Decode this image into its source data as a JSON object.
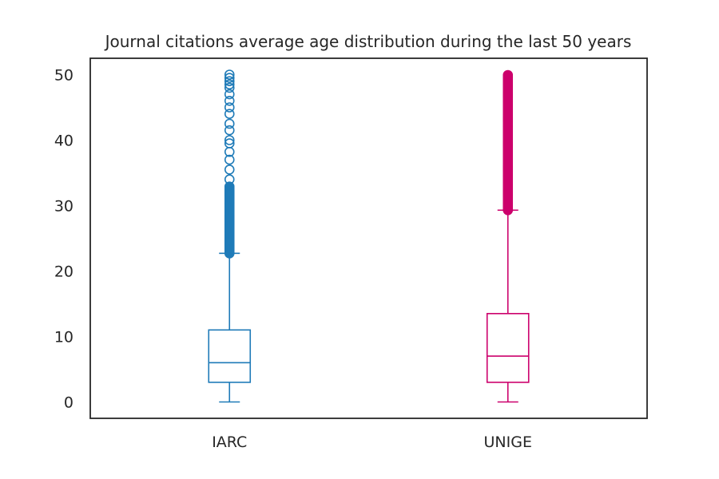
{
  "chart_data": {
    "type": "box",
    "title": "Journal citations average age distribution during the last 50 years",
    "xlabel": "",
    "ylabel": "",
    "categories": [
      "IARC",
      "UNIGE"
    ],
    "ylim": [
      -2.5,
      52.5
    ],
    "yticks": [
      0,
      10,
      20,
      30,
      40,
      50
    ],
    "grid": false,
    "series": [
      {
        "name": "IARC",
        "color": "#1f7bb8",
        "whisker_low": 0,
        "q1": 3,
        "median": 6,
        "q3": 11,
        "whisker_high": 22.7,
        "outliers_dense_range": [
          22.7,
          33
        ],
        "outliers_sparse": [
          34,
          35.5,
          37,
          38.2,
          39.5,
          40,
          41.5,
          42.5,
          44,
          45,
          46,
          47,
          48,
          48.5,
          49,
          49.5,
          50
        ]
      },
      {
        "name": "UNIGE",
        "color": "#cc006c",
        "whisker_low": 0,
        "q1": 3,
        "median": 7,
        "q3": 13.5,
        "whisker_high": 29.3,
        "outliers_dense_range": [
          29.3,
          50
        ],
        "outliers_sparse": []
      }
    ]
  }
}
